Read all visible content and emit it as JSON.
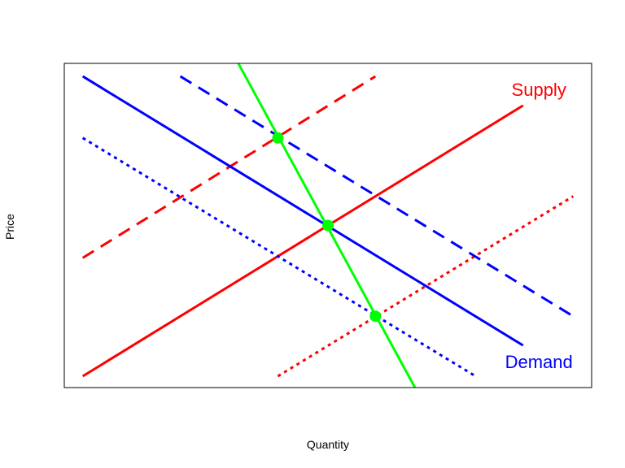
{
  "chart_data": {
    "type": "line",
    "title": "",
    "xlabel": "Quantity",
    "ylabel": "Price",
    "xlim": [
      0,
      10
    ],
    "ylim": [
      0,
      10
    ],
    "grid": false,
    "ticks": false,
    "annotations": [
      {
        "text": "Supply",
        "x": 9.0,
        "y": 9.2,
        "color": "#ff0000"
      },
      {
        "text": "Demand",
        "x": 9.0,
        "y": 0.8,
        "color": "#0000ff"
      }
    ],
    "series": [
      {
        "style": "solid",
        "color": "#ff0000",
        "x": [
          0.35,
          8.7
        ],
        "y": [
          0.35,
          8.7
        ]
      },
      {
        "style": "dashed",
        "color": "#ff0000",
        "x": [
          0.35,
          5.9
        ],
        "y": [
          4.0,
          9.6
        ]
      },
      {
        "style": "dotted",
        "color": "#ff0000",
        "x": [
          4.05,
          9.65
        ],
        "y": [
          0.35,
          5.9
        ]
      },
      {
        "style": "solid",
        "color": "#0000ff",
        "x": [
          0.35,
          8.7
        ],
        "y": [
          9.6,
          1.3
        ]
      },
      {
        "style": "dashed",
        "color": "#0000ff",
        "x": [
          2.2,
          9.65
        ],
        "y": [
          9.6,
          2.2
        ]
      },
      {
        "style": "dotted",
        "color": "#0000ff",
        "x": [
          0.35,
          7.8
        ],
        "y": [
          7.7,
          0.35
        ]
      },
      {
        "style": "solid",
        "color": "#00ff00",
        "x": [
          3.3,
          6.65
        ],
        "y": [
          10.0,
          0.0
        ]
      }
    ],
    "points": {
      "color": "#00ff00",
      "x": [
        4.05,
        5.0,
        5.9
      ],
      "y": [
        7.7,
        5.0,
        2.2
      ]
    }
  }
}
